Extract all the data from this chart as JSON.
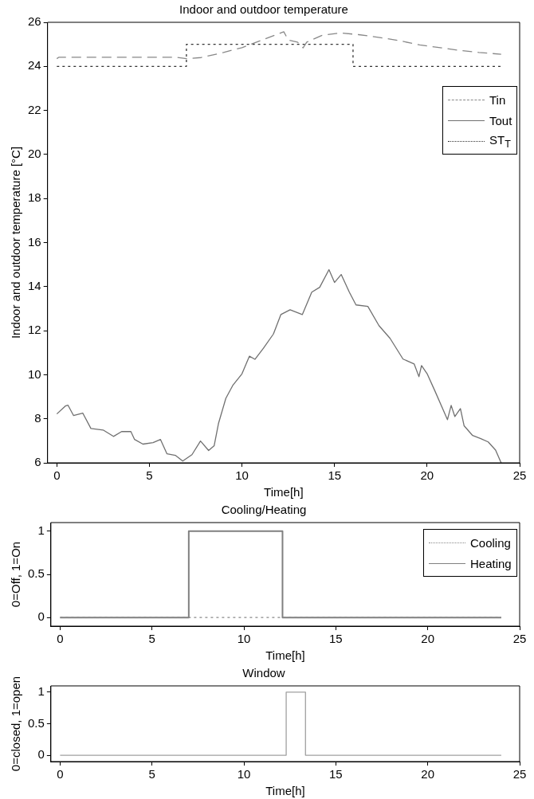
{
  "chart_data": [
    {
      "type": "line",
      "title": "Indoor and outdoor temperature",
      "xlabel": "Time[h]",
      "ylabel": "Indoor and outdoor temperature [°C]",
      "xlim": [
        -0.5,
        25
      ],
      "ylim": [
        6,
        26
      ],
      "xticks": [
        0,
        5,
        10,
        15,
        20,
        25
      ],
      "yticks": [
        6,
        8,
        10,
        12,
        14,
        16,
        18,
        20,
        22,
        24,
        26
      ],
      "grid": false,
      "legend": "top right",
      "marker": "none",
      "series": [
        {
          "name": "Tin",
          "color": "#888888",
          "line_style": "dashed",
          "x": [
            0,
            0.1,
            6.5,
            7,
            7.8,
            9,
            10,
            11.2,
            12.26,
            12.5,
            13.0,
            13.3,
            13.5,
            14.3,
            15.3,
            16.3,
            17.7,
            18.6,
            19.6,
            20.8,
            21.8,
            22.8,
            24
          ],
          "values": [
            24.35,
            24.41,
            24.41,
            24.35,
            24.4,
            24.63,
            24.85,
            25.23,
            25.57,
            25.2,
            25.1,
            24.84,
            25.1,
            25.4,
            25.52,
            25.44,
            25.28,
            25.15,
            24.97,
            24.84,
            24.72,
            24.63,
            24.55
          ]
        },
        {
          "name": "Tout",
          "color": "#707070",
          "line_style": "solid",
          "x": [
            0,
            0.46,
            0.6,
            0.9,
            1.4,
            1.84,
            2.5,
            3.06,
            3.5,
            4.0,
            4.2,
            4.65,
            5.2,
            5.6,
            5.95,
            6.4,
            6.8,
            7.3,
            7.76,
            8.2,
            8.5,
            8.73,
            9.13,
            9.5,
            10.0,
            10.4,
            10.7,
            11.16,
            11.7,
            12.1,
            12.6,
            13.26,
            13.77,
            14.2,
            14.7,
            15.0,
            15.36,
            15.8,
            16.16,
            16.8,
            17.4,
            18.0,
            18.7,
            19.3,
            19.56,
            19.7,
            20.0,
            20.43,
            21.1,
            21.3,
            21.5,
            21.8,
            22.0,
            22.46,
            22.9,
            23.3,
            23.7,
            24.0
          ],
          "values": [
            8.22,
            8.58,
            8.62,
            8.15,
            8.26,
            7.56,
            7.49,
            7.2,
            7.42,
            7.42,
            7.06,
            6.85,
            6.92,
            7.06,
            6.41,
            6.34,
            6.08,
            6.37,
            6.99,
            6.56,
            6.78,
            7.78,
            8.93,
            9.51,
            10.04,
            10.84,
            10.7,
            11.2,
            11.85,
            12.73,
            12.95,
            12.73,
            13.75,
            13.97,
            14.77,
            14.19,
            14.55,
            13.75,
            13.17,
            13.1,
            12.23,
            11.65,
            10.71,
            10.49,
            9.91,
            10.42,
            10.05,
            9.25,
            7.96,
            8.61,
            8.1,
            8.46,
            7.68,
            7.24,
            7.1,
            6.95,
            6.58,
            6.0
          ]
        },
        {
          "name": "ST$_{T}$",
          "type": "step",
          "color": "#333333",
          "line_style": "dotted",
          "x": [
            0,
            7,
            16,
            24
          ],
          "values": [
            24,
            25,
            24,
            24
          ]
        }
      ]
    },
    {
      "type": "line",
      "title": "Cooling/Heating",
      "xlabel": "Time[h]",
      "ylabel": "0=Off, 1=On",
      "xlim": [
        -0.5,
        25
      ],
      "ylim": [
        -0.1,
        1.1
      ],
      "xticks": [
        0,
        5,
        10,
        15,
        20,
        25
      ],
      "yticks": [
        0,
        0.5,
        1
      ],
      "grid": false,
      "legend": "top right",
      "marker": "none",
      "series": [
        {
          "name": "Cooling",
          "color": "#888888",
          "line_style": "dotted",
          "x": [
            0,
            24
          ],
          "values": [
            0,
            0
          ]
        },
        {
          "name": "Heating",
          "type": "step",
          "color": "#808080",
          "line_style": "solid",
          "x": [
            0,
            7,
            12.1,
            24
          ],
          "values": [
            0,
            1,
            0,
            0
          ]
        }
      ]
    },
    {
      "type": "step",
      "title": "Window",
      "xlabel": "Time[h]",
      "ylabel": "0=closed, 1=open",
      "xlim": [
        -0.5,
        25
      ],
      "ylim": [
        -0.1,
        1.1
      ],
      "xticks": [
        0,
        5,
        10,
        15,
        20,
        25
      ],
      "yticks": [
        0,
        0.5,
        1
      ],
      "grid": false,
      "marker": "none",
      "series": [
        {
          "color": "#a0a0a0",
          "line_style": "solid",
          "x": [
            0,
            12.3,
            13.35,
            24
          ],
          "values": [
            0,
            1,
            0,
            0
          ]
        }
      ]
    }
  ]
}
